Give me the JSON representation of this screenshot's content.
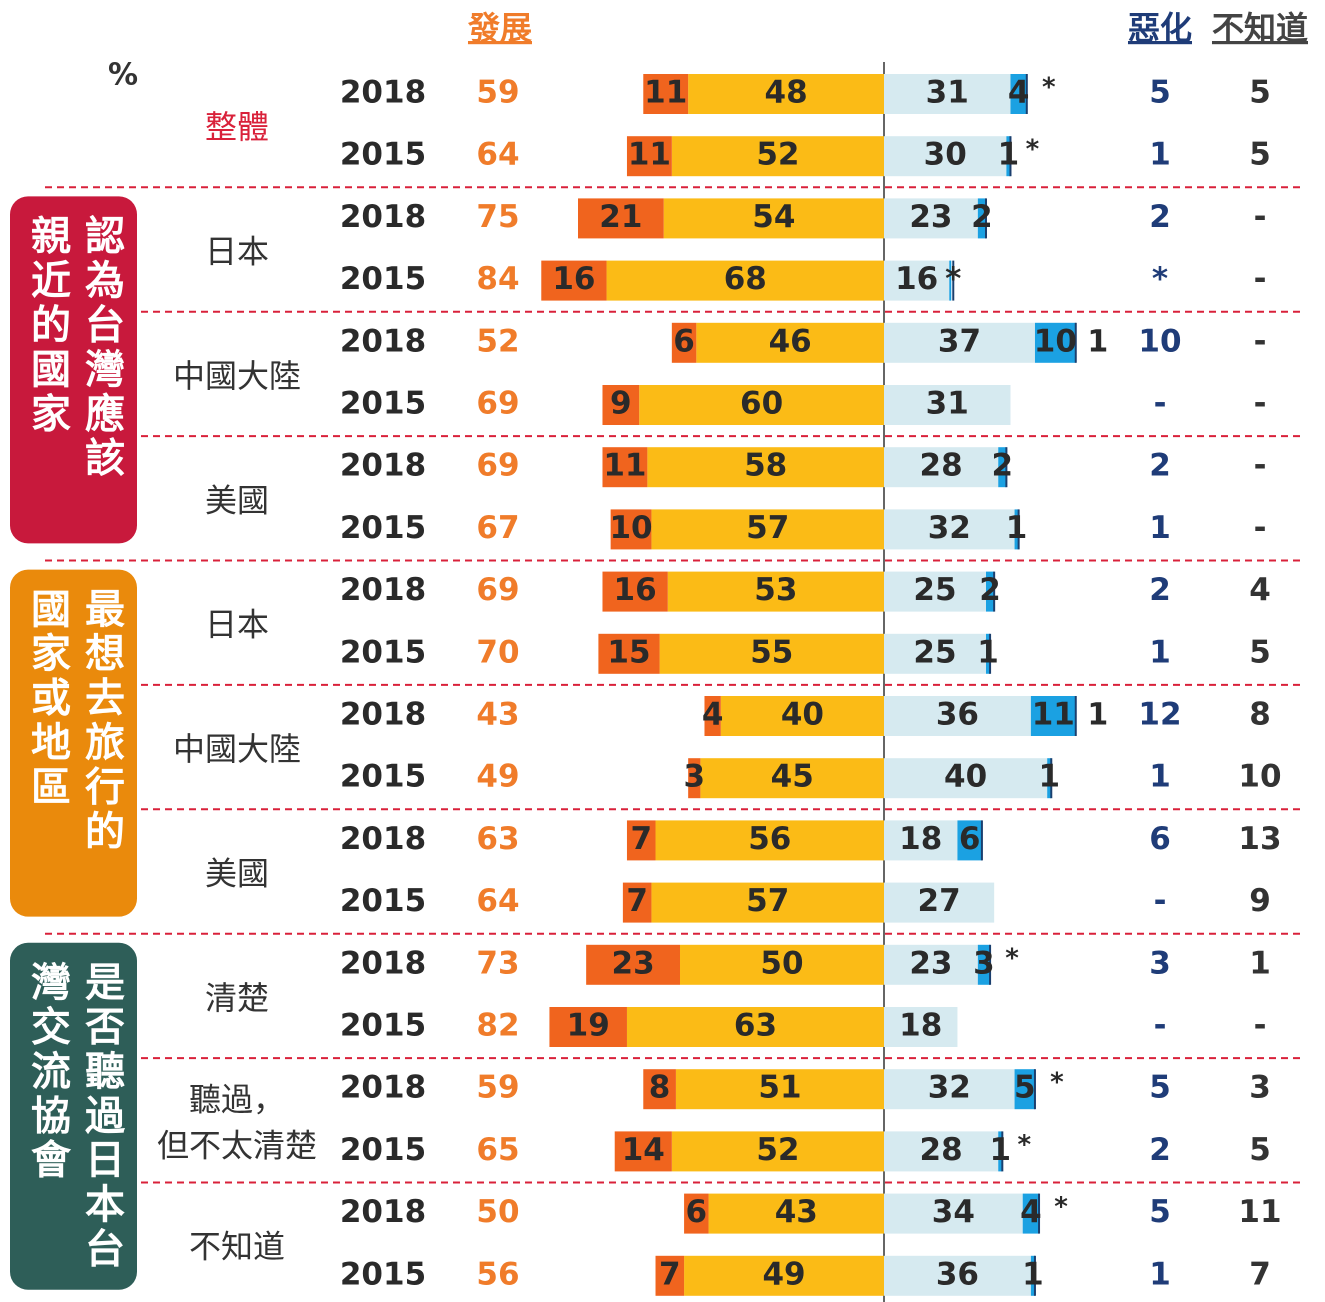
{
  "chart_data": {
    "type": "diverging_bar",
    "header": {
      "unit": "%",
      "develop": "發展",
      "worsen": "惡化",
      "dont_know": "不知道"
    },
    "colors": {
      "strong_develop": "#f0641e",
      "develop": "#fbbb16",
      "worsen": "#d6eaf0",
      "strong_worsen": "#1ba1e2"
    },
    "overall": {
      "label_lines": [
        "整體"
      ],
      "rows": [
        {
          "year": 2018,
          "develop_total": 59,
          "strong": 11,
          "moderate": 48,
          "somewhat_worse": 31,
          "much_worse": 4,
          "extra": "*",
          "worsen_total": 5,
          "dont_know": 5
        },
        {
          "year": 2015,
          "develop_total": 64,
          "strong": 11,
          "moderate": 52,
          "somewhat_worse": 30,
          "much_worse": 1,
          "extra": "*",
          "worsen_total": 1,
          "dont_know": 5
        }
      ]
    },
    "sections": [
      {
        "title_lines": [
          "認為台灣應該",
          "親近的國家"
        ],
        "color": "#c8193c",
        "groups": [
          {
            "label_lines": [
              "日本"
            ],
            "rows": [
              {
                "year": 2018,
                "develop_total": 75,
                "strong": 21,
                "moderate": 54,
                "somewhat_worse": 23,
                "much_worse": 2,
                "extra": null,
                "worsen_total": 2,
                "dont_know": "-"
              },
              {
                "year": 2015,
                "develop_total": 84,
                "strong": 16,
                "moderate": 68,
                "somewhat_worse": 16,
                "much_worse": "*",
                "extra": null,
                "worsen_total": "*",
                "dont_know": "-"
              }
            ]
          },
          {
            "label_lines": [
              "中國大陸"
            ],
            "rows": [
              {
                "year": 2018,
                "develop_total": 52,
                "strong": 6,
                "moderate": 46,
                "somewhat_worse": 37,
                "much_worse": 10,
                "extra": 1,
                "worsen_total": 10,
                "dont_know": "-"
              },
              {
                "year": 2015,
                "develop_total": 69,
                "strong": 9,
                "moderate": 60,
                "somewhat_worse": 31,
                "much_worse": null,
                "extra": null,
                "worsen_total": "-",
                "dont_know": "-"
              }
            ]
          },
          {
            "label_lines": [
              "美國"
            ],
            "rows": [
              {
                "year": 2018,
                "develop_total": 69,
                "strong": 11,
                "moderate": 58,
                "somewhat_worse": 28,
                "much_worse": 2,
                "extra": null,
                "worsen_total": 2,
                "dont_know": "-"
              },
              {
                "year": 2015,
                "develop_total": 67,
                "strong": 10,
                "moderate": 57,
                "somewhat_worse": 32,
                "much_worse": 1,
                "extra": null,
                "worsen_total": 1,
                "dont_know": "-"
              }
            ]
          }
        ]
      },
      {
        "title_lines": [
          "最想去旅行的",
          "國家或地區"
        ],
        "color": "#ea8a0c",
        "groups": [
          {
            "label_lines": [
              "日本"
            ],
            "rows": [
              {
                "year": 2018,
                "develop_total": 69,
                "strong": 16,
                "moderate": 53,
                "somewhat_worse": 25,
                "much_worse": 2,
                "extra": null,
                "worsen_total": 2,
                "dont_know": 4
              },
              {
                "year": 2015,
                "develop_total": 70,
                "strong": 15,
                "moderate": 55,
                "somewhat_worse": 25,
                "much_worse": 1,
                "extra": null,
                "worsen_total": 1,
                "dont_know": 5
              }
            ]
          },
          {
            "label_lines": [
              "中國大陸"
            ],
            "rows": [
              {
                "year": 2018,
                "develop_total": 43,
                "strong": 4,
                "moderate": 40,
                "somewhat_worse": 36,
                "much_worse": 11,
                "extra": 1,
                "worsen_total": 12,
                "dont_know": 8
              },
              {
                "year": 2015,
                "develop_total": 49,
                "strong": 3,
                "moderate": 45,
                "somewhat_worse": 40,
                "much_worse": 1,
                "extra": null,
                "worsen_total": 1,
                "dont_know": 10
              }
            ]
          },
          {
            "label_lines": [
              "美國"
            ],
            "rows": [
              {
                "year": 2018,
                "develop_total": 63,
                "strong": 7,
                "moderate": 56,
                "somewhat_worse": 18,
                "much_worse": 6,
                "extra": null,
                "worsen_total": 6,
                "dont_know": 13
              },
              {
                "year": 2015,
                "develop_total": 64,
                "strong": 7,
                "moderate": 57,
                "somewhat_worse": 27,
                "much_worse": null,
                "extra": null,
                "worsen_total": "-",
                "dont_know": 9
              }
            ]
          }
        ]
      },
      {
        "title_lines": [
          "是否聽過日本台",
          "灣交流協會"
        ],
        "color": "#2e5e58",
        "groups": [
          {
            "label_lines": [
              "清楚"
            ],
            "rows": [
              {
                "year": 2018,
                "develop_total": 73,
                "strong": 23,
                "moderate": 50,
                "somewhat_worse": 23,
                "much_worse": 3,
                "extra": "*",
                "worsen_total": 3,
                "dont_know": 1
              },
              {
                "year": 2015,
                "develop_total": 82,
                "strong": 19,
                "moderate": 63,
                "somewhat_worse": 18,
                "much_worse": null,
                "extra": null,
                "worsen_total": "-",
                "dont_know": "-"
              }
            ]
          },
          {
            "label_lines": [
              "聽過，",
              "但不太清楚"
            ],
            "rows": [
              {
                "year": 2018,
                "develop_total": 59,
                "strong": 8,
                "moderate": 51,
                "somewhat_worse": 32,
                "much_worse": 5,
                "extra": "*",
                "worsen_total": 5,
                "dont_know": 3
              },
              {
                "year": 2015,
                "develop_total": 65,
                "strong": 14,
                "moderate": 52,
                "somewhat_worse": 28,
                "much_worse": 1,
                "extra": "*",
                "worsen_total": 2,
                "dont_know": 5
              }
            ]
          },
          {
            "label_lines": [
              "不知道"
            ],
            "rows": [
              {
                "year": 2018,
                "develop_total": 50,
                "strong": 6,
                "moderate": 43,
                "somewhat_worse": 34,
                "much_worse": 4,
                "extra": "*",
                "worsen_total": 5,
                "dont_know": 11
              },
              {
                "year": 2015,
                "develop_total": 56,
                "strong": 7,
                "moderate": 49,
                "somewhat_worse": 36,
                "much_worse": 1,
                "extra": null,
                "worsen_total": 1,
                "dont_know": 7
              }
            ]
          }
        ]
      }
    ]
  }
}
